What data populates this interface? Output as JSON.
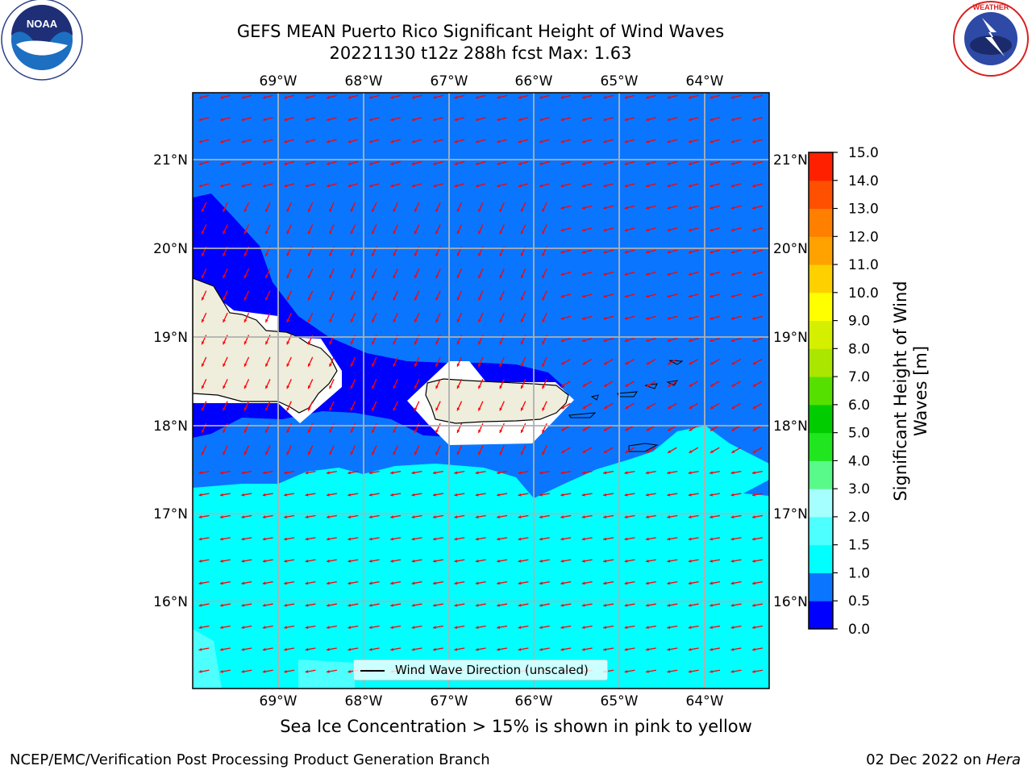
{
  "title": {
    "line1": "GEFS MEAN Puerto Rico Significant Height of Wind Waves",
    "line2": "20221130 t12z 288h fcst   Max: 1.63"
  },
  "logos": {
    "left": {
      "name": "NOAA",
      "ring_text": "NATIONAL OCEANIC AND ATMOSPHERIC ADMINISTRATION · U.S. DEPARTMENT OF COMMERCE"
    },
    "right": {
      "name": "NATIONAL WEATHER SERVICE"
    }
  },
  "map": {
    "lon_labels": [
      "69°W",
      "68°W",
      "67°W",
      "66°W",
      "65°W",
      "64°W"
    ],
    "lat_labels": [
      "21°N",
      "20°N",
      "19°N",
      "18°N",
      "17°N",
      "16°N"
    ],
    "legend_label": "Wind Wave Direction (unscaled)",
    "arrow_color": "#ff0000",
    "land_color": "#efeddc"
  },
  "colorbar": {
    "title": "Significant Height of Wind Waves [m]",
    "ticks": [
      "0.0",
      "0.5",
      "1.0",
      "1.5",
      "2.0",
      "3.0",
      "4.0",
      "5.0",
      "6.0",
      "7.0",
      "8.0",
      "9.0",
      "10.0",
      "11.0",
      "12.0",
      "13.0",
      "14.0",
      "15.0"
    ],
    "colors": [
      "#0000ff",
      "#0a76ff",
      "#00ffff",
      "#4dffff",
      "#a6ffff",
      "#59f98a",
      "#1fe61f",
      "#00cc00",
      "#56e000",
      "#aae600",
      "#d4f000",
      "#ffff00",
      "#ffd000",
      "#ffa200",
      "#ff7f00",
      "#ff4f00",
      "#ff2000"
    ]
  },
  "subtitle": "Sea Ice Concentration > 15% is shown in pink to yellow",
  "footer": {
    "left": "NCEP/EMC/Verification Post Processing Product Generation Branch",
    "right_prefix": "02 Dec 2022 on ",
    "right_host": "Hera"
  }
}
